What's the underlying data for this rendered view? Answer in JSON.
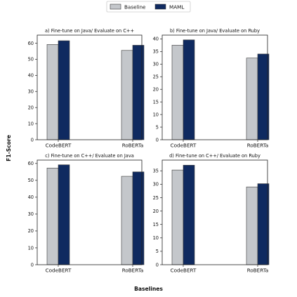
{
  "figure": {
    "ylabel": "F1-Score",
    "xlabel": "Baselines"
  },
  "colors": {
    "Baseline": "#c4c7cb",
    "MAML": "#0f2a60",
    "edge": "#3a3a3a"
  },
  "chart_data": [
    {
      "type": "bar",
      "title": "a) Fine-tune on Java/ Evaluate on C++",
      "categories": [
        "CodeBERT",
        "RoBERTa"
      ],
      "series": [
        {
          "name": "Baseline",
          "values": [
            59.2,
            55.5
          ]
        },
        {
          "name": "MAML",
          "values": [
            61.5,
            58.7
          ]
        }
      ],
      "ylim": [
        0,
        65
      ],
      "yticks": [
        0,
        10,
        20,
        30,
        40,
        50,
        60
      ],
      "legend": "top-center",
      "grid": false
    },
    {
      "type": "bar",
      "title": "b) Fine-tune on Java/ Evaluate on Ruby",
      "categories": [
        "CodeBERT",
        "RoBERTa"
      ],
      "series": [
        {
          "name": "Baseline",
          "values": [
            37.5,
            32.4
          ]
        },
        {
          "name": "MAML",
          "values": [
            39.6,
            34.0
          ]
        }
      ],
      "ylim": [
        0,
        41.5
      ],
      "yticks": [
        0,
        5,
        10,
        15,
        20,
        25,
        30,
        35,
        40
      ],
      "legend": "top-center",
      "grid": false
    },
    {
      "type": "bar",
      "title": "c) Fine-tune on C++/ Evaluate on Java",
      "categories": [
        "CodeBERT",
        "RoBERTa"
      ],
      "series": [
        {
          "name": "Baseline",
          "values": [
            57.3,
            52.4
          ]
        },
        {
          "name": "MAML",
          "values": [
            59.2,
            55.0
          ]
        }
      ],
      "ylim": [
        0,
        62
      ],
      "yticks": [
        0,
        10,
        20,
        30,
        40,
        50,
        60
      ],
      "legend": "top-center",
      "grid": false
    },
    {
      "type": "bar",
      "title": "d) Fine-tune on C++/ Evaluate on Ruby",
      "categories": [
        "CodeBERT",
        "RoBERTa"
      ],
      "series": [
        {
          "name": "Baseline",
          "values": [
            35.3,
            29.0
          ]
        },
        {
          "name": "MAML",
          "values": [
            37.1,
            30.2
          ]
        }
      ],
      "ylim": [
        0,
        39
      ],
      "yticks": [
        0,
        5,
        10,
        15,
        20,
        25,
        30,
        35
      ],
      "legend": "top-center",
      "grid": false
    }
  ]
}
